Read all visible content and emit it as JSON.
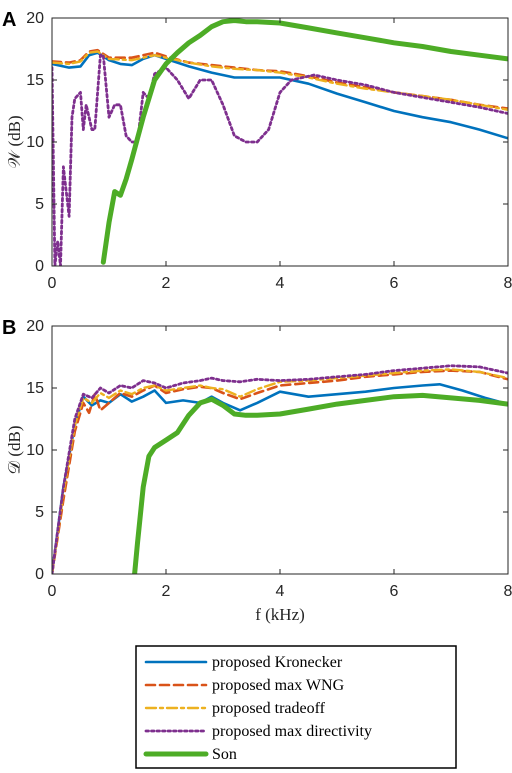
{
  "chart_data": [
    {
      "type": "line",
      "panel_letter": "A",
      "ylabel": "𝒲 (dB)",
      "xlabel": "",
      "xlim": [
        0,
        8
      ],
      "ylim": [
        0,
        20
      ],
      "xticks": [
        "0",
        "2",
        "4",
        "6",
        "8"
      ],
      "yticks": [
        "0",
        "5",
        "10",
        "15",
        "20"
      ],
      "series": [
        {
          "key": "kron",
          "name": "proposed Kronecker",
          "x": [
            0,
            0.3,
            0.5,
            0.65,
            0.8,
            1.0,
            1.2,
            1.4,
            1.6,
            1.8,
            2.0,
            2.4,
            2.8,
            3.2,
            3.6,
            4.0,
            4.5,
            5.0,
            5.5,
            6.0,
            6.5,
            7.0,
            7.5,
            8.0
          ],
          "y": [
            16.3,
            16.0,
            16.1,
            17.0,
            17.2,
            16.6,
            16.3,
            16.2,
            16.7,
            17.0,
            16.7,
            16.1,
            15.6,
            15.2,
            15.2,
            15.2,
            14.7,
            13.9,
            13.2,
            12.5,
            12.0,
            11.6,
            11.0,
            10.3
          ]
        },
        {
          "key": "maxwng",
          "name": "proposed max WNG",
          "x": [
            0,
            0.3,
            0.5,
            0.65,
            0.8,
            1.0,
            1.4,
            1.8,
            2.0,
            2.4,
            2.8,
            3.2,
            3.6,
            4.0,
            4.5,
            5.0,
            5.5,
            6.0,
            6.5,
            7.0,
            7.5,
            8.0
          ],
          "y": [
            16.5,
            16.4,
            16.6,
            17.3,
            17.4,
            16.8,
            16.8,
            17.2,
            16.9,
            16.4,
            16.2,
            16.0,
            15.8,
            15.7,
            15.3,
            14.8,
            14.4,
            14.0,
            13.7,
            13.4,
            13.0,
            12.7
          ]
        },
        {
          "key": "tradeoff",
          "name": "proposed tradeoff",
          "x": [
            0,
            0.3,
            0.5,
            0.65,
            0.8,
            1.0,
            1.4,
            1.8,
            2.0,
            2.4,
            2.8,
            3.2,
            3.6,
            4.0,
            4.5,
            5.0,
            5.5,
            6.0,
            6.5,
            7.0,
            7.5,
            8.0
          ],
          "y": [
            16.4,
            16.3,
            16.5,
            17.2,
            17.3,
            16.7,
            16.6,
            17.0,
            16.8,
            16.4,
            16.1,
            15.9,
            15.8,
            15.6,
            15.2,
            14.7,
            14.3,
            14.0,
            13.7,
            13.4,
            13.0,
            12.6
          ]
        },
        {
          "key": "maxdir",
          "name": "proposed max directivity",
          "x": [
            0,
            0.05,
            0.1,
            0.15,
            0.2,
            0.3,
            0.35,
            0.4,
            0.5,
            0.55,
            0.6,
            0.7,
            0.75,
            0.85,
            0.9,
            1.0,
            1.1,
            1.2,
            1.3,
            1.4,
            1.5,
            1.6,
            1.7,
            1.8,
            2.0,
            2.2,
            2.4,
            2.6,
            2.8,
            3.0,
            3.2,
            3.4,
            3.6,
            3.8,
            4.0,
            4.2,
            4.6,
            5.0,
            5.5,
            6.0,
            6.5,
            7.0,
            7.5,
            8.0
          ],
          "y": [
            16.0,
            0,
            2,
            0,
            8,
            4,
            12,
            13.5,
            14,
            11,
            13,
            11,
            11,
            17,
            17,
            12,
            13,
            13,
            10.5,
            10,
            10,
            14,
            13.5,
            15.5,
            16,
            15,
            13.5,
            15,
            15,
            13,
            10.5,
            10,
            10,
            11,
            14,
            15,
            15.4,
            15,
            14.6,
            14.0,
            13.6,
            13.2,
            12.8,
            12.3
          ]
        },
        {
          "key": "son",
          "name": "Son",
          "x": [
            0.9,
            1.0,
            1.1,
            1.2,
            1.3,
            1.4,
            1.6,
            1.8,
            2.0,
            2.2,
            2.4,
            2.6,
            2.8,
            3.0,
            3.2,
            3.4,
            3.6,
            4.0,
            4.5,
            5.0,
            5.5,
            6.0,
            6.5,
            7.0,
            7.5,
            8.0
          ],
          "y": [
            0.3,
            3.5,
            6.0,
            5.7,
            7.0,
            8.6,
            12.0,
            15.0,
            16.3,
            17.2,
            18.0,
            18.6,
            19.3,
            19.7,
            19.8,
            19.7,
            19.7,
            19.6,
            19.2,
            18.8,
            18.4,
            18.0,
            17.7,
            17.3,
            17.0,
            16.7
          ]
        }
      ]
    },
    {
      "type": "line",
      "panel_letter": "B",
      "ylabel": "𝒟 (dB)",
      "xlabel": "f (kHz)",
      "xlim": [
        0,
        8
      ],
      "ylim": [
        0,
        20
      ],
      "xticks": [
        "0",
        "2",
        "4",
        "6",
        "8"
      ],
      "yticks": [
        "0",
        "5",
        "10",
        "15",
        "20"
      ],
      "series": [
        {
          "key": "kron",
          "name": "proposed Kronecker",
          "x": [
            0,
            0.2,
            0.4,
            0.55,
            0.7,
            0.85,
            1.0,
            1.2,
            1.4,
            1.6,
            1.8,
            2.0,
            2.3,
            2.6,
            2.8,
            3.0,
            3.3,
            3.6,
            4.0,
            4.5,
            5.0,
            5.5,
            6.0,
            6.5,
            6.8,
            7.2,
            7.6,
            8.0
          ],
          "y": [
            0,
            7,
            12,
            14.3,
            13.6,
            14.0,
            13.8,
            14.5,
            13.9,
            14.3,
            14.8,
            13.8,
            14.0,
            13.8,
            14.3,
            13.8,
            13.2,
            13.8,
            14.7,
            14.3,
            14.5,
            14.7,
            15.0,
            15.2,
            15.3,
            14.8,
            14.2,
            13.7
          ]
        },
        {
          "key": "maxwng",
          "name": "proposed max WNG",
          "x": [
            0,
            0.2,
            0.4,
            0.55,
            0.65,
            0.75,
            0.85,
            1.0,
            1.2,
            1.4,
            1.6,
            1.8,
            2.0,
            2.3,
            2.6,
            2.8,
            3.0,
            3.3,
            3.6,
            4.0,
            4.5,
            5.0,
            5.5,
            6.0,
            6.5,
            7.0,
            7.5,
            8.0
          ],
          "y": [
            0,
            6,
            11.5,
            13.8,
            13.0,
            14.5,
            13.2,
            13.8,
            14.6,
            14.3,
            14.8,
            15.2,
            14.6,
            14.9,
            15.1,
            15.0,
            14.6,
            14.1,
            14.6,
            15.2,
            15.4,
            15.6,
            15.9,
            16.1,
            16.3,
            16.4,
            16.3,
            15.7
          ]
        },
        {
          "key": "tradeoff",
          "name": "proposed tradeoff",
          "x": [
            0,
            0.2,
            0.4,
            0.55,
            0.7,
            0.85,
            1.0,
            1.2,
            1.4,
            1.6,
            1.8,
            2.0,
            2.3,
            2.6,
            2.8,
            3.0,
            3.3,
            3.6,
            4.0,
            4.5,
            5.0,
            5.5,
            6.0,
            6.5,
            7.0,
            7.5,
            8.0
          ],
          "y": [
            0,
            6.5,
            12,
            14.2,
            13.8,
            14.6,
            14.2,
            14.8,
            14.5,
            15.0,
            15.2,
            14.8,
            15.0,
            15.2,
            15.0,
            14.9,
            14.3,
            14.9,
            15.5,
            15.6,
            15.8,
            16.0,
            16.2,
            16.4,
            16.5,
            16.3,
            15.8
          ]
        },
        {
          "key": "maxdir",
          "name": "proposed max directivity",
          "x": [
            0,
            0.2,
            0.4,
            0.55,
            0.7,
            0.85,
            1.0,
            1.2,
            1.4,
            1.6,
            1.8,
            2.0,
            2.3,
            2.6,
            2.8,
            3.0,
            3.3,
            3.6,
            4.0,
            4.5,
            5.0,
            5.5,
            6.0,
            6.5,
            7.0,
            7.5,
            8.0
          ],
          "y": [
            0,
            7,
            12.5,
            14.5,
            14.2,
            15.0,
            14.6,
            15.2,
            15.0,
            15.6,
            15.4,
            15.0,
            15.4,
            15.6,
            15.8,
            15.6,
            15.5,
            15.7,
            15.6,
            15.7,
            15.9,
            16.1,
            16.4,
            16.6,
            16.8,
            16.7,
            16.2
          ]
        },
        {
          "key": "son",
          "name": "Son",
          "x": [
            1.45,
            1.5,
            1.6,
            1.7,
            1.8,
            2.0,
            2.2,
            2.4,
            2.6,
            2.8,
            3.0,
            3.2,
            3.4,
            3.6,
            4.0,
            4.5,
            5.0,
            5.5,
            6.0,
            6.5,
            7.0,
            7.5,
            8.0
          ],
          "y": [
            0,
            2.5,
            7.0,
            9.5,
            10.2,
            10.8,
            11.4,
            12.8,
            13.8,
            14.1,
            13.6,
            12.9,
            12.8,
            12.8,
            12.9,
            13.3,
            13.7,
            14.0,
            14.3,
            14.4,
            14.2,
            14.0,
            13.7
          ]
        }
      ]
    }
  ],
  "legend": {
    "placement": "bottom",
    "entries": [
      "proposed Kronecker",
      "proposed max WNG",
      "proposed tradeoff",
      "proposed max directivity",
      "Son"
    ]
  },
  "colors": {
    "kron": "#0072BD",
    "maxwng": "#D95319",
    "tradeoff": "#EDB120",
    "maxdir": "#7E2F8E",
    "son": "#4DAC26"
  }
}
